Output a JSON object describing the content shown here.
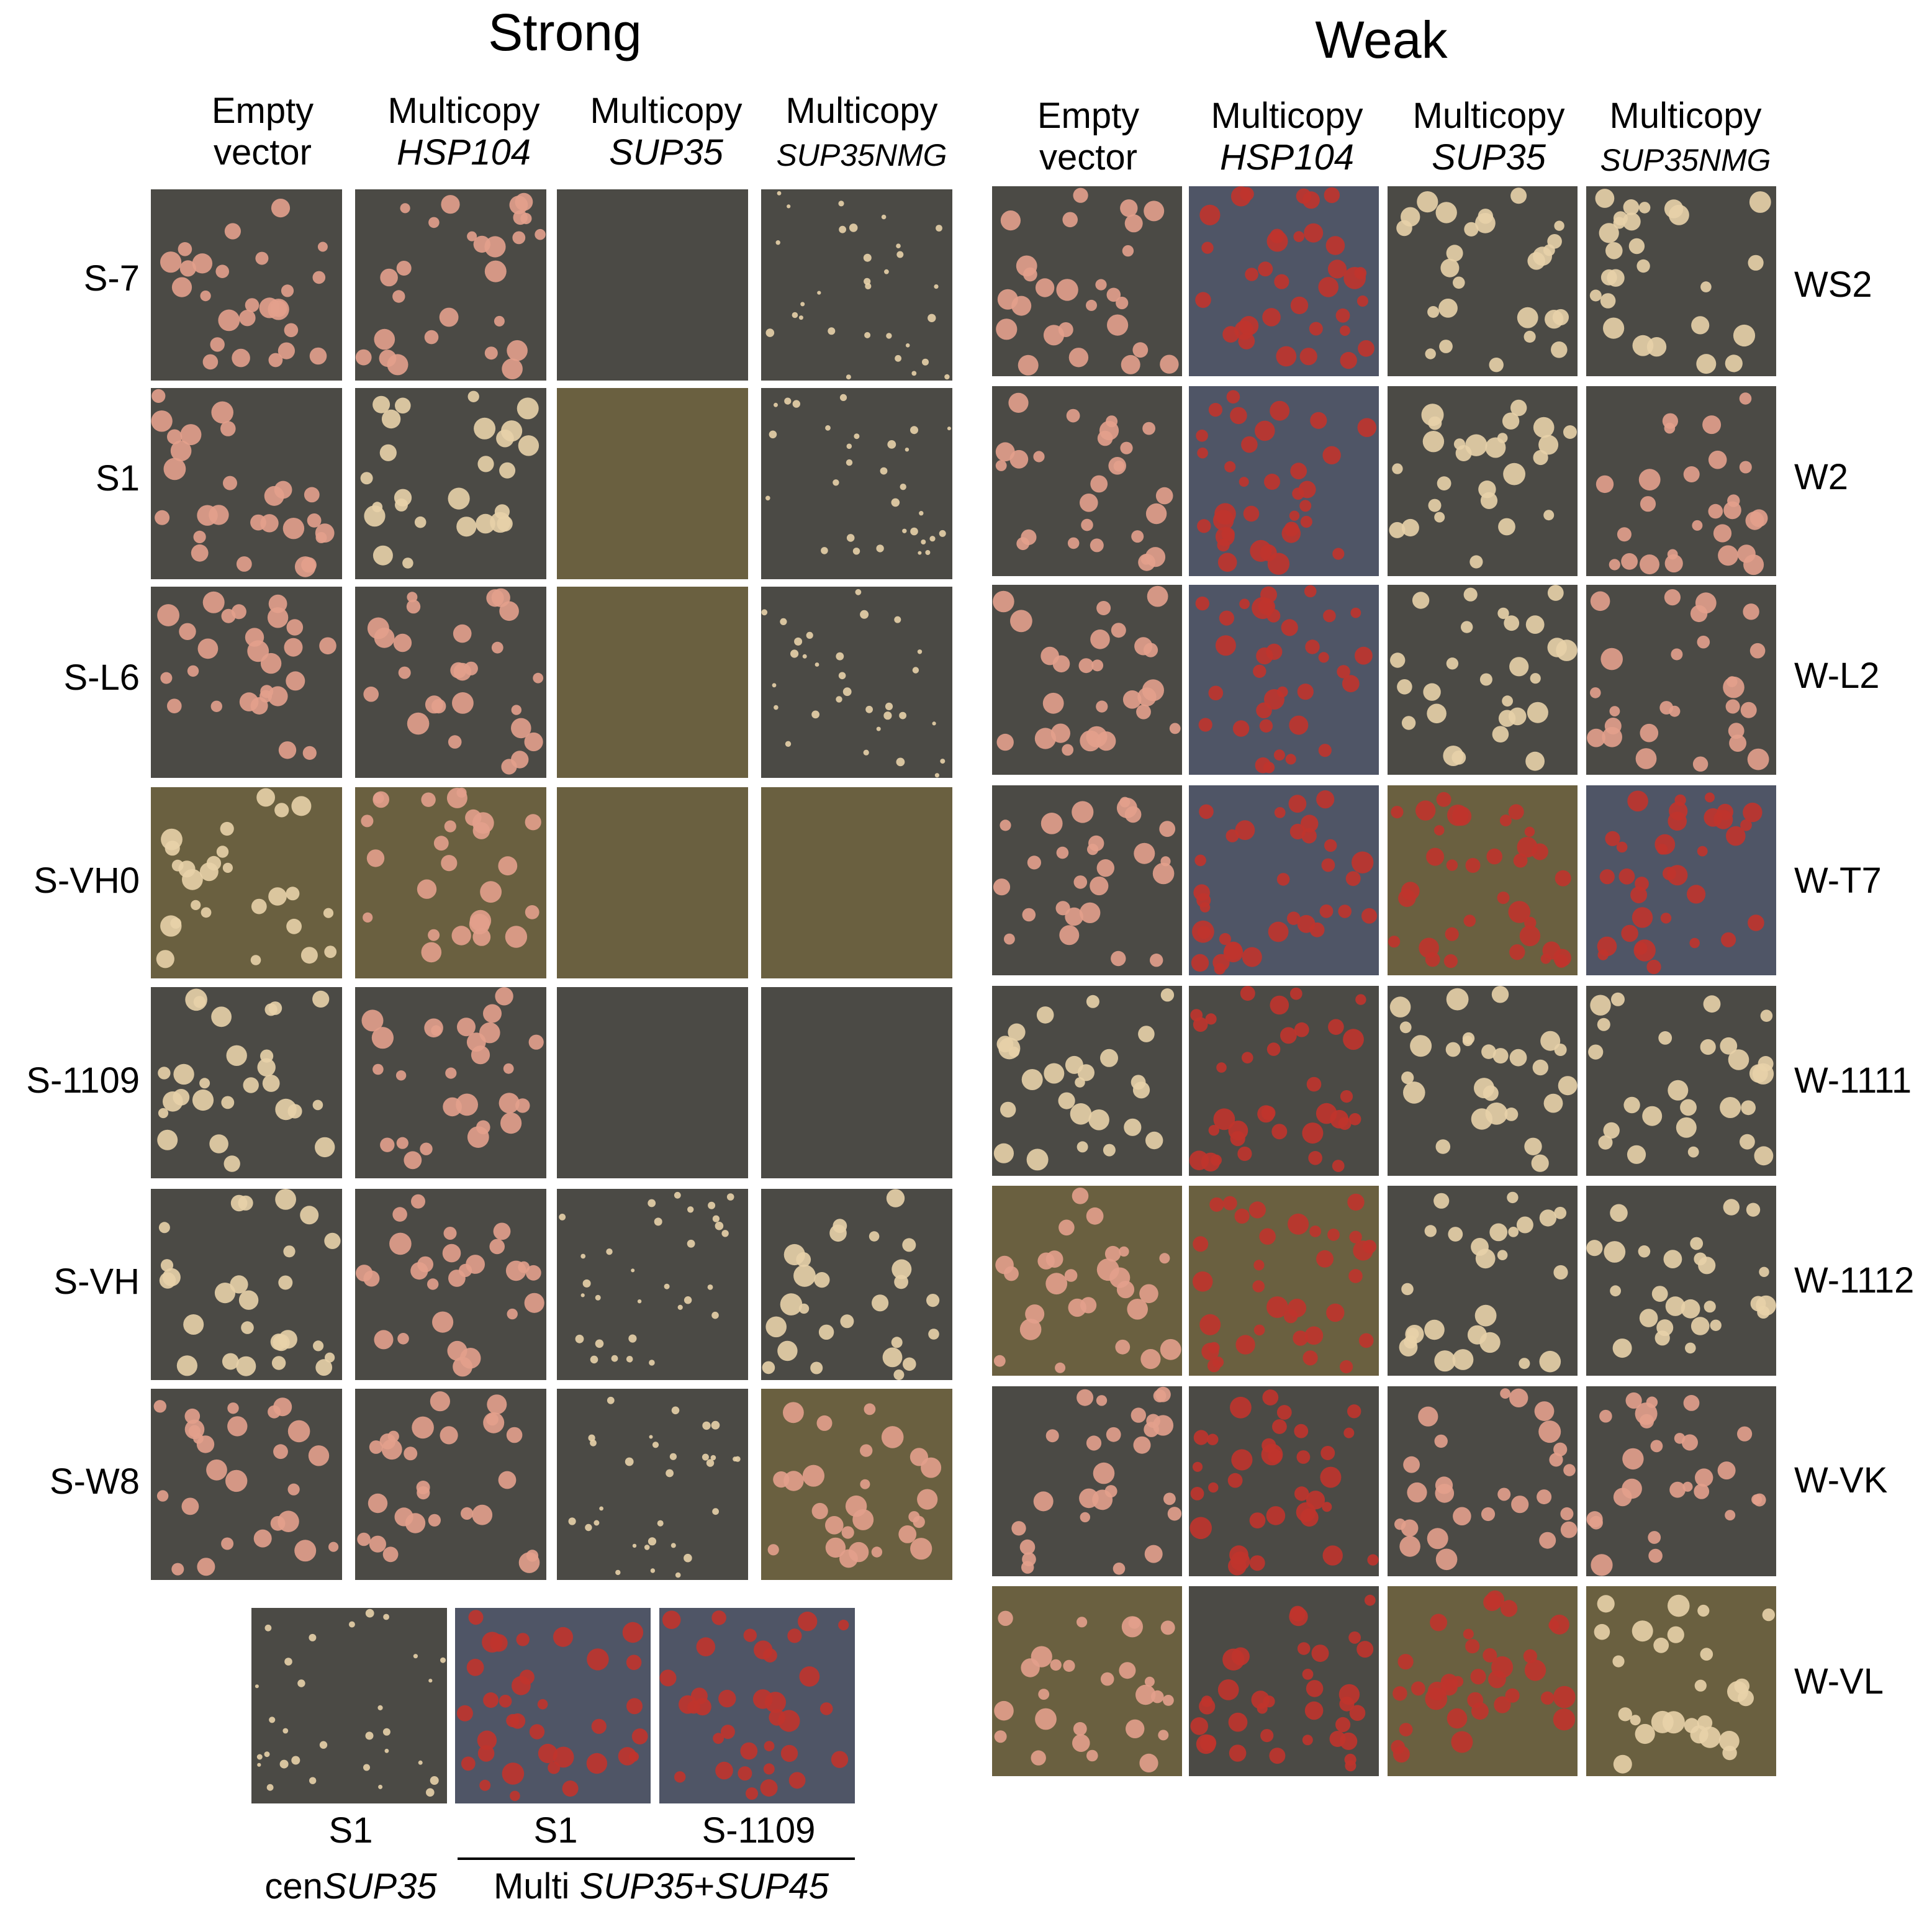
{
  "titles": {
    "strong": "Strong",
    "weak": "Weak"
  },
  "columns": [
    {
      "line1": "Empty",
      "line2": "vector",
      "italic": false
    },
    {
      "line1": "Multicopy",
      "line2": "HSP104",
      "italic": true
    },
    {
      "line1": "Multicopy",
      "line2": "SUP35",
      "italic": true
    },
    {
      "line1": "Multicopy",
      "line2": "SUP35NMG",
      "italic": true
    }
  ],
  "strong_rows": [
    "S-7",
    "S1",
    "S-L6",
    "S-VH0",
    "S-1109",
    "S-VH",
    "S-W8"
  ],
  "weak_rows": [
    "WS2",
    "W2",
    "W-L2",
    "W-T7",
    "W-1111",
    "W-1112",
    "W-VK",
    "W-VL"
  ],
  "bottom": {
    "panels": [
      "S1",
      "S1",
      "S-1109"
    ],
    "cen_prefix": "cen",
    "cen_gene": "SUP35",
    "multi_prefix": "Multi ",
    "multi_gene1": "SUP35",
    "multi_plus": "+",
    "multi_gene2": "SUP45"
  },
  "colors": {
    "plate_gray": "#4b4a45",
    "plate_olive": "#6a6040",
    "plate_blue": "#4f5566",
    "colony_pink": "#e3a08c",
    "colony_cream": "#e8d2a8",
    "colony_red": "#c0342c"
  },
  "strong_plates": [
    [
      "gray-pink",
      "gray-pink",
      "blank",
      "gray-cream-small"
    ],
    [
      "gray-pink",
      "gray-cream",
      "olive-blank",
      "gray-cream-small"
    ],
    [
      "gray-pink",
      "gray-pink",
      "olive-blank",
      "gray-cream-small"
    ],
    [
      "olive-cream",
      "olive-pink",
      "olive-blank",
      "olive-blank"
    ],
    [
      "gray-cream",
      "gray-pink",
      "blank",
      "blank"
    ],
    [
      "gray-cream",
      "gray-pink",
      "gray-cream-small",
      "gray-cream"
    ],
    [
      "gray-pink",
      "gray-pink",
      "gray-cream-small",
      "olive-pink"
    ]
  ],
  "weak_plates": [
    [
      "gray-pink",
      "blue-red",
      "gray-cream",
      "gray-cream"
    ],
    [
      "gray-pink",
      "blue-red",
      "gray-cream",
      "gray-pink"
    ],
    [
      "gray-pink",
      "blue-red",
      "gray-cream",
      "gray-pink"
    ],
    [
      "gray-pink",
      "blue-red",
      "olive-red",
      "blue-red"
    ],
    [
      "gray-cream",
      "gray-red",
      "gray-cream",
      "gray-cream"
    ],
    [
      "olive-pink",
      "olive-red",
      "gray-cream",
      "gray-cream"
    ],
    [
      "gray-pink",
      "gray-red",
      "gray-pink",
      "gray-pink"
    ],
    [
      "olive-pink",
      "gray-red",
      "olive-red",
      "olive-cream"
    ]
  ],
  "bottom_plates": [
    "gray-cream-small",
    "blue-red",
    "blue-red"
  ]
}
